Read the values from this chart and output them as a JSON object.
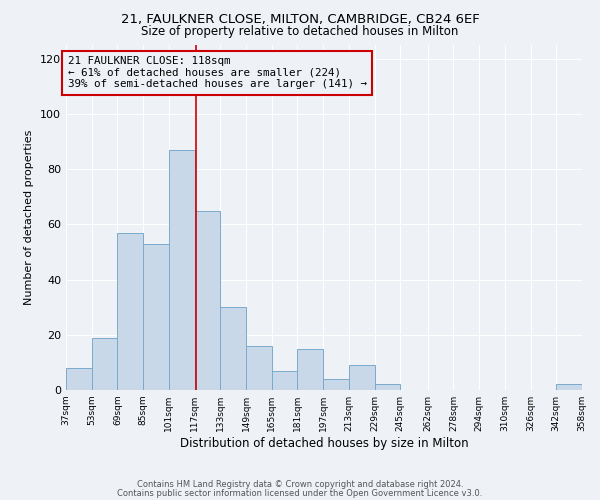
{
  "title": "21, FAULKNER CLOSE, MILTON, CAMBRIDGE, CB24 6EF",
  "subtitle": "Size of property relative to detached houses in Milton",
  "xlabel": "Distribution of detached houses by size in Milton",
  "ylabel": "Number of detached properties",
  "bin_edges": [
    37,
    53,
    69,
    85,
    101,
    117,
    133,
    149,
    165,
    181,
    197,
    213,
    229,
    245,
    262,
    278,
    294,
    310,
    326,
    342,
    358
  ],
  "bar_heights": [
    8,
    19,
    57,
    53,
    87,
    65,
    30,
    16,
    7,
    15,
    4,
    9,
    2,
    0,
    0,
    0,
    0,
    0,
    0,
    2
  ],
  "bar_color": "#c8d8e8",
  "bar_edgecolor": "#7aaacc",
  "reference_line_x": 118,
  "reference_line_color": "#cc0000",
  "annotation_title": "21 FAULKNER CLOSE: 118sqm",
  "annotation_line1": "← 61% of detached houses are smaller (224)",
  "annotation_line2": "39% of semi-detached houses are larger (141) →",
  "annotation_box_edgecolor": "#cc0000",
  "ylim": [
    0,
    125
  ],
  "yticks": [
    0,
    20,
    40,
    60,
    80,
    100,
    120
  ],
  "tick_labels": [
    "37sqm",
    "53sqm",
    "69sqm",
    "85sqm",
    "101sqm",
    "117sqm",
    "133sqm",
    "149sqm",
    "165sqm",
    "181sqm",
    "197sqm",
    "213sqm",
    "229sqm",
    "245sqm",
    "262sqm",
    "278sqm",
    "294sqm",
    "310sqm",
    "326sqm",
    "342sqm",
    "358sqm"
  ],
  "footnote1": "Contains HM Land Registry data © Crown copyright and database right 2024.",
  "footnote2": "Contains public sector information licensed under the Open Government Licence v3.0.",
  "bg_color": "#eef2f7"
}
